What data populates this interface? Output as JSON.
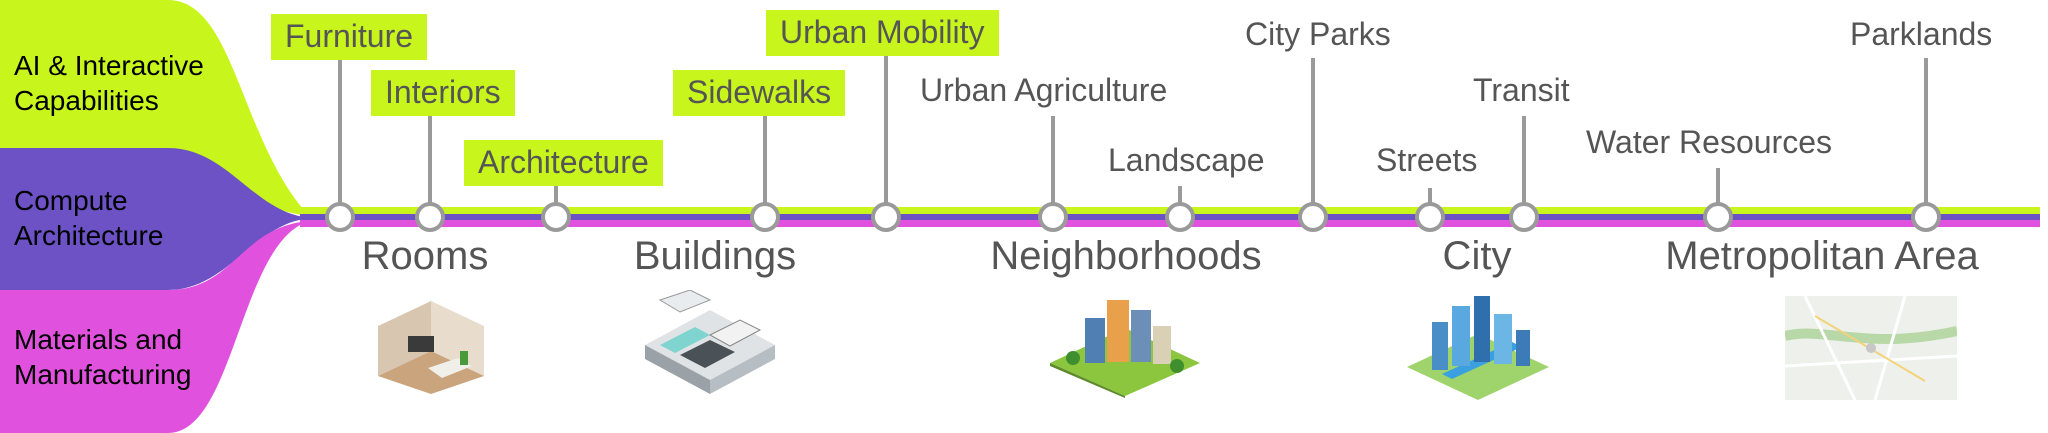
{
  "categories": [
    {
      "lines": [
        "AI & Interactive",
        "Capabilities"
      ],
      "color": "#c8f51c",
      "text_color": "#111111"
    },
    {
      "lines": [
        "Compute",
        "Architecture"
      ],
      "color": "#6c52c4",
      "text_color": "#ffffff"
    },
    {
      "lines": [
        "Materials and",
        "Manufacturing"
      ],
      "color": "#e052de",
      "text_color": "#ffffff"
    }
  ],
  "timeline_colors": {
    "top": "#c8f51c",
    "bottom": "#e052de",
    "stem": "#9a9a9a"
  },
  "milestones": [
    {
      "label": "Furniture",
      "highlight": true
    },
    {
      "label": "Interiors",
      "highlight": true
    },
    {
      "label": "Architecture",
      "highlight": true
    },
    {
      "label": "Sidewalks",
      "highlight": true
    },
    {
      "label": "Urban Mobility",
      "highlight": true
    },
    {
      "label": "Urban Agriculture",
      "highlight": false
    },
    {
      "label": "Landscape",
      "highlight": false
    },
    {
      "label": "City Parks",
      "highlight": false
    },
    {
      "label": "Streets",
      "highlight": false
    },
    {
      "label": "Transit",
      "highlight": false
    },
    {
      "label": "Water Resources",
      "highlight": false
    },
    {
      "label": "Parklands",
      "highlight": false
    }
  ],
  "scales": [
    {
      "label": "Rooms",
      "image": "room-interior-image"
    },
    {
      "label": "Buildings",
      "image": "building-floorplan-image"
    },
    {
      "label": "Neighborhoods",
      "image": "neighborhood-blocks-image"
    },
    {
      "label": "City",
      "image": "city-skyline-image"
    },
    {
      "label": "Metropolitan Area",
      "image": "metropolitan-map-image"
    }
  ]
}
